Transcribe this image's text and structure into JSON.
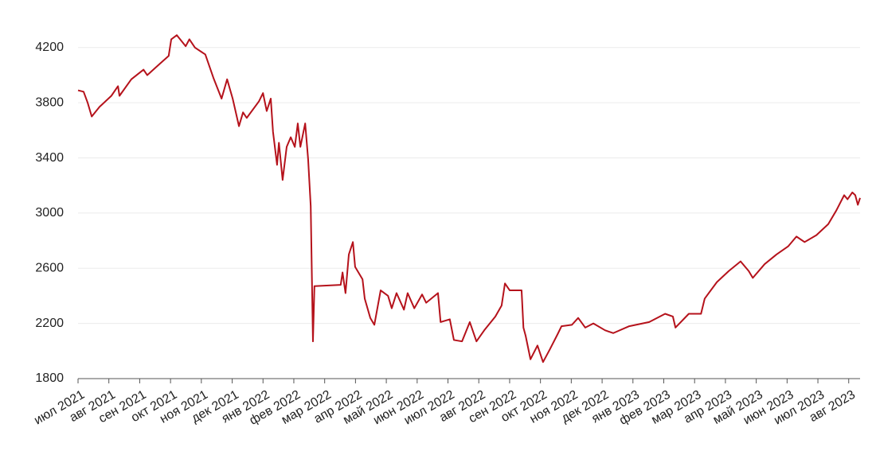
{
  "chart_data": {
    "type": "line",
    "x": [
      2021.5,
      2021.515,
      2021.526,
      2021.537,
      2021.558,
      2021.59,
      2021.608,
      2021.612,
      2021.644,
      2021.677,
      2021.687,
      2021.72,
      2021.745,
      2021.752,
      2021.767,
      2021.791,
      2021.801,
      2021.816,
      2021.844,
      2021.866,
      2021.888,
      2021.903,
      2021.918,
      2021.935,
      2021.946,
      2021.956,
      2021.989,
      2022.0,
      2022.01,
      2022.021,
      2022.027,
      2022.038,
      2022.043,
      2022.053,
      2022.064,
      2022.075,
      2022.086,
      2022.094,
      2022.101,
      2022.114,
      2022.122,
      2022.129,
      2022.135,
      2022.139,
      2022.21,
      2022.215,
      2022.223,
      2022.232,
      2022.243,
      2022.249,
      2022.269,
      2022.275,
      2022.29,
      2022.301,
      2022.318,
      2022.338,
      2022.348,
      2022.361,
      2022.381,
      2022.391,
      2022.409,
      2022.43,
      2022.441,
      2022.473,
      2022.48,
      2022.505,
      2022.516,
      2022.538,
      2022.559,
      2022.577,
      2022.598,
      2022.628,
      2022.645,
      2022.654,
      2022.667,
      2022.699,
      2022.704,
      2022.71,
      2022.723,
      2022.742,
      2022.757,
      2022.775,
      2022.796,
      2022.807,
      2022.835,
      2022.852,
      2022.871,
      2022.893,
      2022.925,
      2022.947,
      2022.99,
      2023.044,
      2023.087,
      2023.108,
      2023.115,
      2023.151,
      2023.184,
      2023.194,
      2023.227,
      2023.259,
      2023.291,
      2023.313,
      2023.324,
      2023.356,
      2023.388,
      2023.42,
      2023.442,
      2023.464,
      2023.496,
      2023.528,
      2023.55,
      2023.571,
      2023.58,
      2023.593,
      2023.601,
      2023.608,
      2023.614
    ],
    "series": [
      {
        "color": "#b5121b",
        "values": [
          3890,
          3880,
          3800,
          3700,
          3770,
          3850,
          3920,
          3850,
          3970,
          4040,
          4000,
          4080,
          4140,
          4260,
          4290,
          4210,
          4260,
          4200,
          4150,
          3980,
          3830,
          3970,
          3830,
          3630,
          3730,
          3690,
          3810,
          3870,
          3740,
          3830,
          3590,
          3350,
          3510,
          3240,
          3480,
          3550,
          3480,
          3650,
          3480,
          3650,
          3390,
          3050,
          2070,
          2470,
          2480,
          2570,
          2420,
          2700,
          2790,
          2610,
          2520,
          2380,
          2240,
          2190,
          2440,
          2400,
          2310,
          2420,
          2300,
          2420,
          2310,
          2410,
          2350,
          2420,
          2210,
          2230,
          2080,
          2070,
          2210,
          2070,
          2150,
          2250,
          2330,
          2490,
          2440,
          2440,
          2170,
          2110,
          1940,
          2040,
          1920,
          2010,
          2120,
          2180,
          2190,
          2240,
          2170,
          2200,
          2150,
          2130,
          2180,
          2210,
          2270,
          2250,
          2170,
          2270,
          2270,
          2380,
          2500,
          2580,
          2650,
          2580,
          2530,
          2630,
          2700,
          2760,
          2830,
          2790,
          2840,
          2920,
          3020,
          3130,
          3100,
          3150,
          3130,
          3060,
          3110
        ]
      }
    ],
    "xlim": [
      2021.5,
      2023.614
    ],
    "xticks": [
      {
        "value": 2021.5,
        "label": "июл 2021"
      },
      {
        "value": 2021.5833,
        "label": "авг 2021"
      },
      {
        "value": 2021.6667,
        "label": "сен 2021"
      },
      {
        "value": 2021.75,
        "label": "окт 2021"
      },
      {
        "value": 2021.8333,
        "label": "ноя 2021"
      },
      {
        "value": 2021.9167,
        "label": "дек 2021"
      },
      {
        "value": 2022.0,
        "label": "янв 2022"
      },
      {
        "value": 2022.0833,
        "label": "фев 2022"
      },
      {
        "value": 2022.1667,
        "label": "мар 2022"
      },
      {
        "value": 2022.25,
        "label": "апр 2022"
      },
      {
        "value": 2022.3333,
        "label": "май 2022"
      },
      {
        "value": 2022.4167,
        "label": "июн 2022"
      },
      {
        "value": 2022.5,
        "label": "июл 2022"
      },
      {
        "value": 2022.5833,
        "label": "авг 2022"
      },
      {
        "value": 2022.6667,
        "label": "сен 2022"
      },
      {
        "value": 2022.75,
        "label": "окт 2022"
      },
      {
        "value": 2022.8333,
        "label": "ноя 2022"
      },
      {
        "value": 2022.9167,
        "label": "дек 2022"
      },
      {
        "value": 2023.0,
        "label": "янв 2023"
      },
      {
        "value": 2023.0833,
        "label": "фев 2023"
      },
      {
        "value": 2023.1667,
        "label": "мар 2023"
      },
      {
        "value": 2023.25,
        "label": "апр 2023"
      },
      {
        "value": 2023.3333,
        "label": "май 2023"
      },
      {
        "value": 2023.4167,
        "label": "июн 2023"
      },
      {
        "value": 2023.5,
        "label": "июл 2023"
      },
      {
        "value": 2023.5833,
        "label": "авг 2023"
      }
    ],
    "ylim": [
      1800,
      4320
    ],
    "yticks": [
      1800,
      2200,
      2600,
      3000,
      3400,
      3800,
      4200
    ],
    "grid": true
  }
}
